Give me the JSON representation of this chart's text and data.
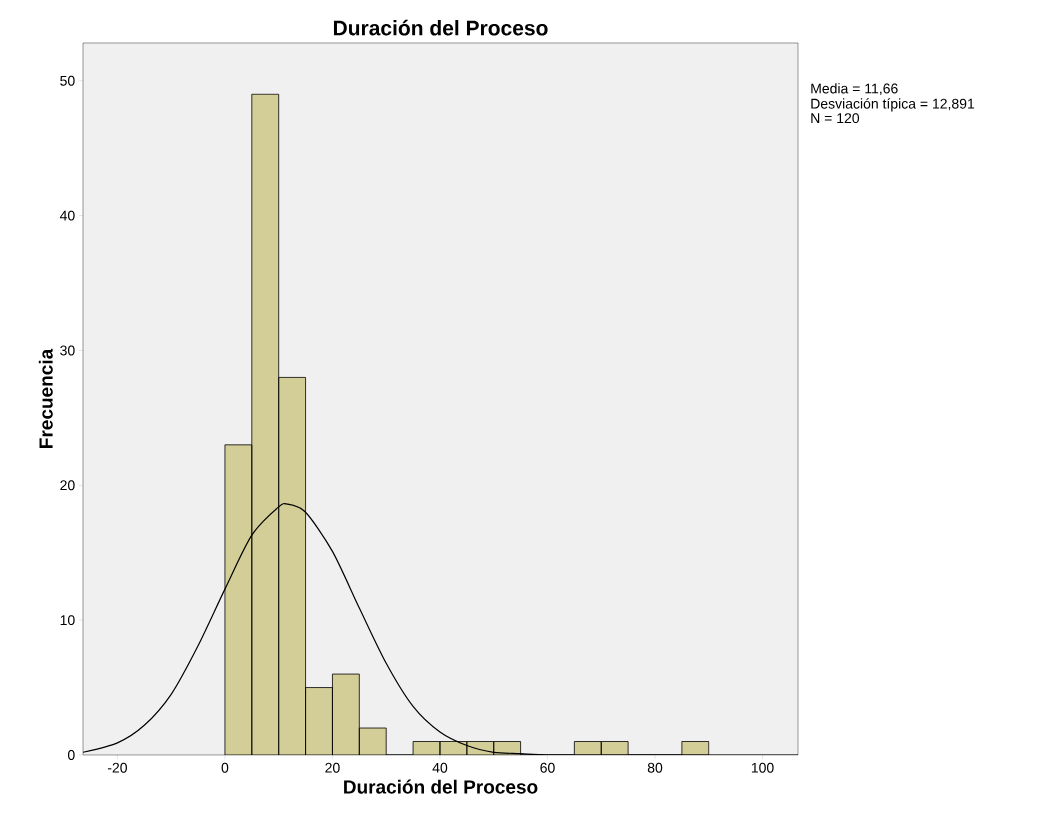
{
  "chart_data": {
    "type": "histogram",
    "title": "Duración del Proceso",
    "xlabel": "Duración del Proceso",
    "ylabel": "Frecuencia",
    "annotations": [
      "Media = 11,66",
      "Desviación típica = 12,891",
      "N = 120"
    ],
    "xlim": [
      -26.4,
      106.6
    ],
    "ylim": [
      0,
      52.8
    ],
    "xticks": [
      -20,
      0,
      20,
      40,
      60,
      80,
      100
    ],
    "yticks": [
      0,
      10,
      20,
      30,
      40,
      50
    ],
    "grid": false,
    "series": [
      {
        "type": "histogram",
        "color": "#d3ce97",
        "bins": [
          0,
          5,
          10,
          15,
          20,
          25,
          30,
          35,
          40,
          45,
          50,
          55,
          60,
          65,
          70,
          75,
          80,
          85,
          90
        ],
        "values": [
          23,
          49,
          28,
          5,
          6,
          2,
          0,
          1,
          1,
          1,
          1,
          0,
          0,
          1,
          1,
          0,
          0,
          1
        ]
      },
      {
        "type": "line",
        "color": "#000000",
        "x": [
          -26.4,
          -20,
          -15,
          -10,
          -5,
          0,
          5,
          10,
          11.66,
          15,
          20,
          25,
          30,
          35,
          40,
          45,
          50,
          55,
          60,
          70,
          106.6
        ],
        "values": [
          0.2,
          0.9,
          2.2,
          4.5,
          8.1,
          12.3,
          16.3,
          18.4,
          18.6,
          18.0,
          15.1,
          10.9,
          6.8,
          3.6,
          1.7,
          0.7,
          0.2,
          0.1,
          0,
          0,
          0
        ]
      }
    ]
  }
}
